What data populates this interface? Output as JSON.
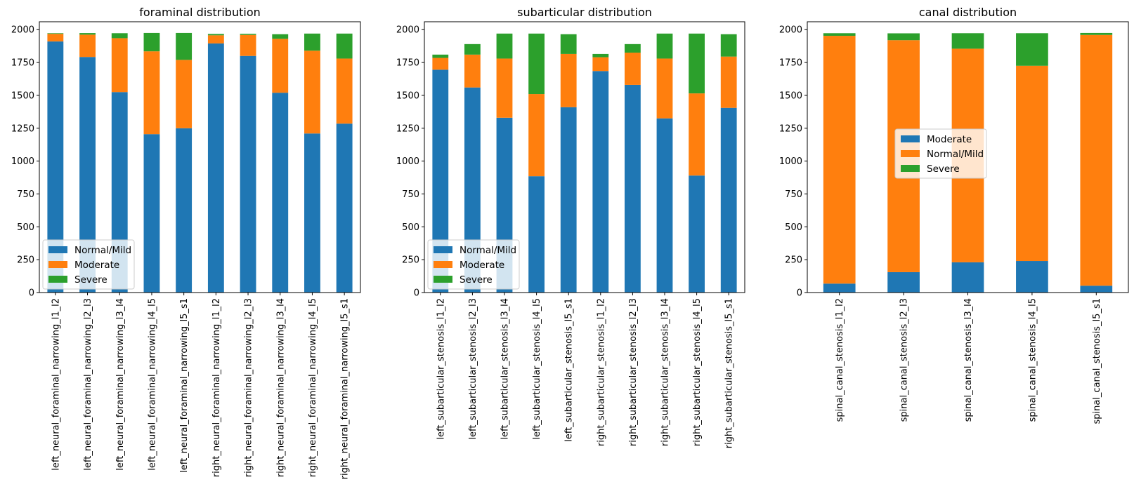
{
  "colors": {
    "blue": "#1f77b4",
    "orange": "#ff7f0e",
    "green": "#2ca02c"
  },
  "chart_data": [
    {
      "type": "bar",
      "stacked": true,
      "title": "foraminal distribution",
      "xlabel": "",
      "ylabel": "",
      "ylim": [
        0,
        2060
      ],
      "yticks": [
        0,
        250,
        500,
        750,
        1000,
        1250,
        1500,
        1750,
        2000
      ],
      "legend": {
        "placement": "lower-left"
      },
      "categories": [
        "left_neural_foraminal_narrowing_l1_l2",
        "left_neural_foraminal_narrowing_l2_l3",
        "left_neural_foraminal_narrowing_l3_l4",
        "left_neural_foraminal_narrowing_l4_l5",
        "left_neural_foraminal_narrowing_l5_s1",
        "right_neural_foraminal_narrowing_l1_l2",
        "right_neural_foraminal_narrowing_l2_l3",
        "right_neural_foraminal_narrowing_l3_l4",
        "right_neural_foraminal_narrowing_l4_l5",
        "right_neural_foraminal_narrowing_l5_s1"
      ],
      "series": [
        {
          "name": "Normal/Mild",
          "color": "#1f77b4",
          "values": [
            1910,
            1792,
            1525,
            1205,
            1250,
            1895,
            1800,
            1520,
            1210,
            1285
          ]
        },
        {
          "name": "Moderate",
          "color": "#ff7f0e",
          "values": [
            58,
            170,
            410,
            630,
            520,
            62,
            160,
            410,
            630,
            495
          ]
        },
        {
          "name": "Severe",
          "color": "#2ca02c",
          "values": [
            5,
            12,
            38,
            140,
            205,
            10,
            8,
            35,
            130,
            190
          ]
        }
      ]
    },
    {
      "type": "bar",
      "stacked": true,
      "title": "subarticular distribution",
      "xlabel": "",
      "ylabel": "",
      "ylim": [
        0,
        2060
      ],
      "yticks": [
        0,
        250,
        500,
        750,
        1000,
        1250,
        1500,
        1750,
        2000
      ],
      "legend": {
        "placement": "lower-left"
      },
      "categories": [
        "left_subarticular_stenosis_l1_l2",
        "left_subarticular_stenosis_l2_l3",
        "left_subarticular_stenosis_l3_l4",
        "left_subarticular_stenosis_l4_l5",
        "left_subarticular_stenosis_l5_s1",
        "right_subarticular_stenosis_l1_l2",
        "right_subarticular_stenosis_l2_l3",
        "right_subarticular_stenosis_l3_l4",
        "right_subarticular_stenosis_l4_l5",
        "right_subarticular_stenosis_l5_s1"
      ],
      "series": [
        {
          "name": "Normal/Mild",
          "color": "#1f77b4",
          "values": [
            1695,
            1560,
            1330,
            885,
            1410,
            1685,
            1580,
            1325,
            890,
            1405
          ]
        },
        {
          "name": "Moderate",
          "color": "#ff7f0e",
          "values": [
            90,
            250,
            450,
            625,
            405,
            105,
            245,
            455,
            625,
            390
          ]
        },
        {
          "name": "Severe",
          "color": "#2ca02c",
          "values": [
            25,
            80,
            190,
            460,
            150,
            25,
            65,
            190,
            455,
            170
          ]
        }
      ]
    },
    {
      "type": "bar",
      "stacked": true,
      "title": "canal distribution",
      "xlabel": "",
      "ylabel": "",
      "ylim": [
        0,
        2060
      ],
      "yticks": [
        0,
        250,
        500,
        750,
        1000,
        1250,
        1500,
        1750,
        2000
      ],
      "legend": {
        "placement": "center-right"
      },
      "categories": [
        "spinal_canal_stenosis_l1_l2",
        "spinal_canal_stenosis_l2_l3",
        "spinal_canal_stenosis_l3_l4",
        "spinal_canal_stenosis_l4_l5",
        "spinal_canal_stenosis_l5_s1"
      ],
      "series": [
        {
          "name": "Moderate",
          "color": "#1f77b4",
          "values": [
            68,
            155,
            230,
            240,
            52
          ]
        },
        {
          "name": "Normal/Mild",
          "color": "#ff7f0e",
          "values": [
            1885,
            1765,
            1625,
            1485,
            1908
          ]
        },
        {
          "name": "Severe",
          "color": "#2ca02c",
          "values": [
            20,
            52,
            118,
            248,
            15
          ]
        }
      ]
    }
  ]
}
